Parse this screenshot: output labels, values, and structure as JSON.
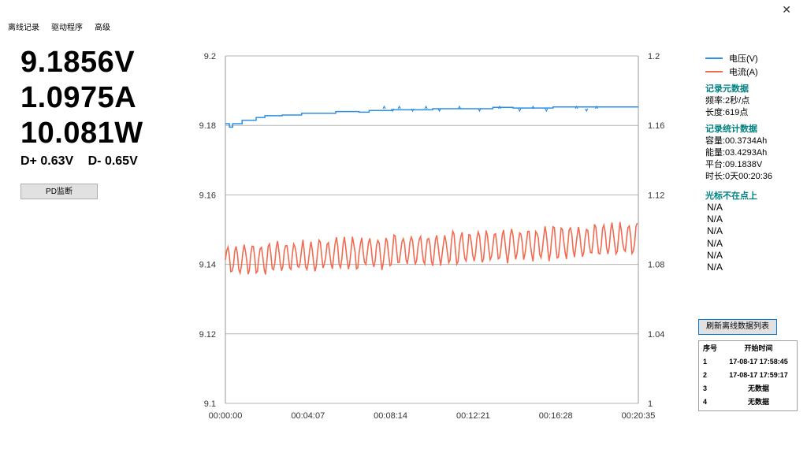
{
  "menu": [
    "离线记录",
    "驱动程序",
    "高级"
  ],
  "window": {
    "close_glyph": "✕"
  },
  "readings": {
    "voltage": "9.1856V",
    "current": "1.0975A",
    "power": "10.081W",
    "d_plus": "D+ 0.63V",
    "d_minus": "D- 0.65V"
  },
  "buttons": {
    "pd_monitor": "PD监断",
    "refresh": "刷新离线数据列表"
  },
  "legend": [
    {
      "name": "电压(V)",
      "color": "#2b8fe6"
    },
    {
      "name": "电流(A)",
      "color": "#f26a50"
    }
  ],
  "meta": {
    "title": "记录元数据",
    "freq": "频率:2秒/点",
    "length": "长度:619点"
  },
  "stats": {
    "title": "记录统计数据",
    "capacity": "容量:00.3734Ah",
    "energy": "能量:03.4293Ah",
    "plateau": "平台:09.1838V",
    "duration": "时长:0天00:20:36"
  },
  "cursor": {
    "title": "光标不在点上",
    "values": [
      "N/A",
      "N/A",
      "N/A",
      "N/A",
      "N/A",
      "N/A"
    ]
  },
  "table": {
    "headers": [
      "序号",
      "开始时间"
    ],
    "rows": [
      [
        "1",
        "17-08-17 17:58:45"
      ],
      [
        "2",
        "17-08-17 17:59:17"
      ],
      [
        "3",
        "无数据"
      ],
      [
        "4",
        "无数据"
      ]
    ]
  },
  "chart_data": {
    "type": "line",
    "x_tick_labels": [
      "00:00:00",
      "00:04:07",
      "00:08:14",
      "00:12:21",
      "00:16:28",
      "00:20:35"
    ],
    "y_left": {
      "ylim": [
        9.1,
        9.2
      ],
      "tick_labels": [
        "9.2",
        "9.18",
        "9.16",
        "9.14",
        "9.12",
        "9.1"
      ]
    },
    "y_right": {
      "ylim": [
        1.0,
        1.2
      ],
      "tick_labels": [
        "1.2",
        "1.16",
        "1.12",
        "1.08",
        "1.04",
        "1"
      ]
    },
    "xlim_seconds": [
      0,
      1235
    ],
    "grid": true,
    "legend_position": "right",
    "series": [
      {
        "name": "电压(V)",
        "axis": "left",
        "color": "#2b8fe6",
        "x": [
          0,
          12,
          22,
          48,
          50,
          90,
          92,
          112,
          118,
          170,
          225,
          228,
          290,
          330,
          370,
          400,
          430,
          470,
          500,
          560,
          620,
          680,
          740,
          800,
          860,
          920,
          980,
          1050,
          1100,
          1150,
          1235
        ],
        "y": [
          9.1805,
          9.1795,
          9.1805,
          9.1805,
          9.1815,
          9.1815,
          9.1823,
          9.1823,
          9.1828,
          9.183,
          9.183,
          9.1835,
          9.1835,
          9.184,
          9.184,
          9.1838,
          9.1843,
          9.1843,
          9.1845,
          9.1845,
          9.1848,
          9.1848,
          9.1848,
          9.1852,
          9.185,
          9.185,
          9.1853,
          9.1853,
          9.1853,
          9.1853,
          9.1853
        ]
      },
      {
        "name": "电流(A)",
        "axis": "right",
        "color": "#f26a50",
        "amplitude_low_start": 1.073,
        "amplitude_high_start": 1.092,
        "amplitude_low_end": 1.085,
        "amplitude_high_end": 1.105,
        "oscillation_period_seconds": 25
      }
    ]
  }
}
